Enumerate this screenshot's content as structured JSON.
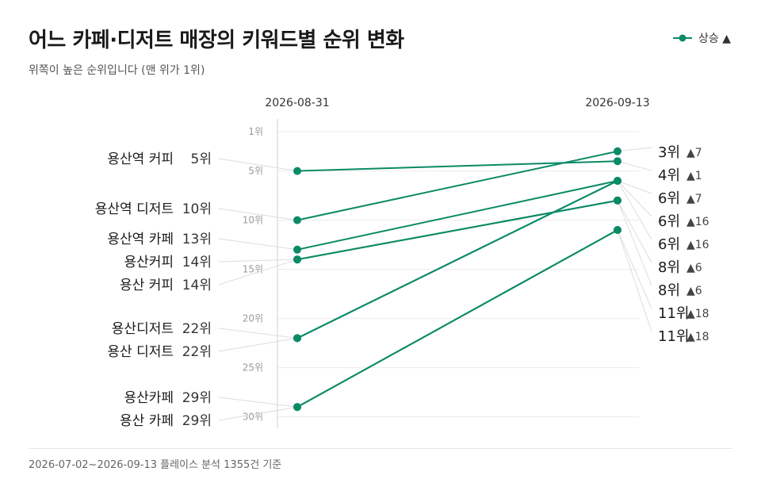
{
  "title": "어느 카페·디저트 매장의 키워드별 순위 변화",
  "subtitle": "위쪽이 높은 순위입니다 (맨 위가 1위)",
  "legend": {
    "label": "상승 ▲"
  },
  "footer": "2026-07-02~2026-09-13 플레이스 분석 1355건 기준",
  "colors": {
    "series": "#0b8a66",
    "grid": "#ececec",
    "axis": "#cfcfcf",
    "tick": "#9a9a9a",
    "connector": "#dddddd"
  },
  "chart_data": {
    "type": "line",
    "title": "어느 카페·디저트 매장의 키워드별 순위 변화",
    "subtitle": "위쪽이 높은 순위입니다 (맨 위가 1위)",
    "x": [
      "2026-08-31",
      "2026-09-13"
    ],
    "y_axis": {
      "reversed": true,
      "range": [
        1,
        31
      ],
      "ticks": [
        1,
        5,
        10,
        15,
        20,
        25,
        30
      ],
      "tick_labels": [
        "1위",
        "5위",
        "10위",
        "15위",
        "20위",
        "25위",
        "30위"
      ]
    },
    "grid": true,
    "legend_position": "top-right",
    "series": [
      {
        "keyword": "용산역 커피",
        "start": 5,
        "end": 4,
        "start_label": "5위",
        "end_label": "4위",
        "change": "▲1"
      },
      {
        "keyword": "용산역 디저트",
        "start": 10,
        "end": 3,
        "start_label": "10위",
        "end_label": "3위",
        "change": "▲7"
      },
      {
        "keyword": "용산역 카페",
        "start": 13,
        "end": 6,
        "start_label": "13위",
        "end_label": "6위",
        "change": "▲7"
      },
      {
        "keyword": "용산커피",
        "start": 14,
        "end": 8,
        "start_label": "14위",
        "end_label": "8위",
        "change": "▲6"
      },
      {
        "keyword": "용산 커피",
        "start": 14,
        "end": 8,
        "start_label": "14위",
        "end_label": "8위",
        "change": "▲6"
      },
      {
        "keyword": "용산디저트",
        "start": 22,
        "end": 6,
        "start_label": "22위",
        "end_label": "6위",
        "change": "▲16"
      },
      {
        "keyword": "용산 디저트",
        "start": 22,
        "end": 6,
        "start_label": "22위",
        "end_label": "6위",
        "change": "▲16"
      },
      {
        "keyword": "용산카페",
        "start": 29,
        "end": 11,
        "start_label": "29위",
        "end_label": "11위",
        "change": "▲18"
      },
      {
        "keyword": "용산 카페",
        "start": 29,
        "end": 11,
        "start_label": "29위",
        "end_label": "11위",
        "change": "▲18"
      }
    ],
    "right_labels_order": [
      1,
      0,
      2,
      5,
      6,
      3,
      4,
      7,
      8
    ]
  }
}
